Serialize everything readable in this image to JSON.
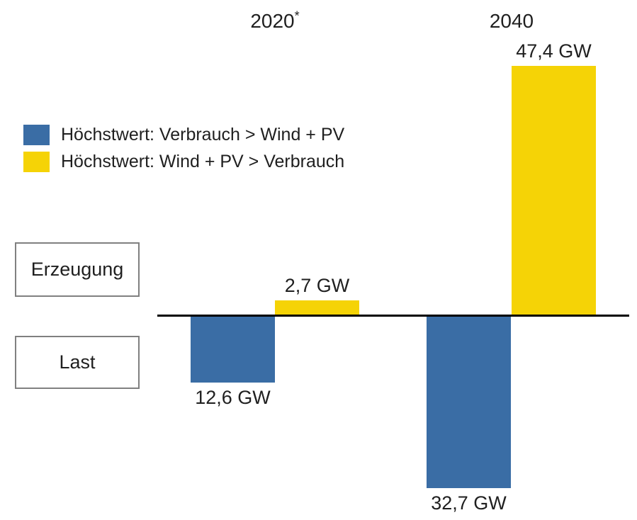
{
  "page": {
    "background": "#ffffff"
  },
  "colors": {
    "blue": "#3a6da5",
    "yellow": "#f5d306",
    "axis": "#000000",
    "box_border": "#808080"
  },
  "legend": {
    "items": [
      {
        "label": "Höchstwert: Verbrauch > Wind + PV",
        "color_key": "blue"
      },
      {
        "label": "Höchstwert: Wind + PV > Verbrauch",
        "color_key": "yellow"
      }
    ]
  },
  "row_labels": [
    {
      "label": "Erzeugung"
    },
    {
      "label": "Last"
    }
  ],
  "chart_data": {
    "type": "bar",
    "orientation": "diverging-vertical",
    "unit": "GW",
    "grid": false,
    "legend_position": "top-left",
    "positive_direction_label": "Erzeugung",
    "negative_direction_label": "Last",
    "series": [
      {
        "name": "Höchstwert: Verbrauch > Wind + PV",
        "color_key": "blue",
        "values": [
          -12.6,
          -32.7
        ]
      },
      {
        "name": "Höchstwert: Wind + PV > Verbrauch",
        "color_key": "yellow",
        "values": [
          2.7,
          47.4
        ]
      }
    ],
    "groups": [
      {
        "year": "2020",
        "superscript": "*",
        "bars": [
          {
            "series": "Höchstwert: Verbrauch > Wind + PV",
            "value": -12.6,
            "label": "12,6 GW",
            "color_key": "blue"
          },
          {
            "series": "Höchstwert: Wind + PV > Verbrauch",
            "value": 2.7,
            "label": "2,7 GW",
            "color_key": "yellow"
          }
        ]
      },
      {
        "year": "2040",
        "superscript": "",
        "bars": [
          {
            "series": "Höchstwert: Verbrauch > Wind + PV",
            "value": -32.7,
            "label": "32,7 GW",
            "color_key": "blue"
          },
          {
            "series": "Höchstwert: Wind + PV > Verbrauch",
            "value": 47.4,
            "label": "47,4 GW",
            "color_key": "yellow"
          }
        ]
      }
    ]
  }
}
